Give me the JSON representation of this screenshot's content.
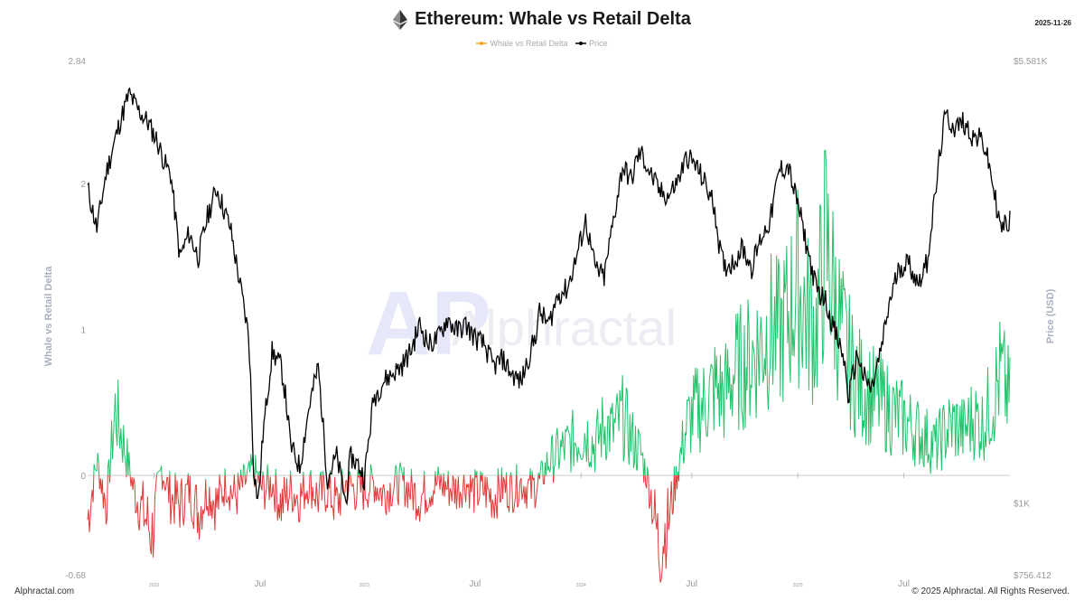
{
  "header": {
    "title": "Ethereum: Whale vs Retail Delta",
    "date": "2025-11-26",
    "icon": "ethereum-icon"
  },
  "legend": [
    {
      "name": "Whale vs Retail Delta",
      "color": "#f5a623"
    },
    {
      "name": "Price",
      "color": "#000000"
    }
  ],
  "watermark": "Alphractal",
  "footer": {
    "left": "Alphractal.com",
    "right": "© 2025 Alphractal. All Rights Reserved."
  },
  "colors": {
    "positive": "#22c36b",
    "negative": "#e03b3b",
    "price": "#000000",
    "axis_text": "#999999"
  },
  "chart_data": {
    "type": "line",
    "title": "Ethereum: Whale vs Retail Delta",
    "ylabel_left": "Whale vs Retail Delta",
    "ylabel_right": "Price (USD)",
    "ylim_left": [
      -0.68,
      2.84
    ],
    "ylim_right": [
      756.412,
      5581
    ],
    "right_scale": "log",
    "left_ticks": [
      "2.84",
      "2",
      "1",
      "0",
      "-0.68"
    ],
    "left_tick_values": [
      2.84,
      2,
      1,
      0,
      -0.68
    ],
    "right_ticks": [
      "$5.581K",
      "$1K",
      "$756.412"
    ],
    "right_tick_values": [
      5581,
      1000,
      756.412
    ],
    "x_ticks": [
      {
        "label": "2023",
        "pos": 0.072,
        "minor": true
      },
      {
        "label": "Jul",
        "pos": 0.187,
        "minor": false
      },
      {
        "label": "2023",
        "pos": 0.3,
        "minor": true
      },
      {
        "label": "Jul",
        "pos": 0.42,
        "minor": false
      },
      {
        "label": "2024",
        "pos": 0.535,
        "minor": true
      },
      {
        "label": "Jul",
        "pos": 0.655,
        "minor": false
      },
      {
        "label": "2025",
        "pos": 0.77,
        "minor": true
      },
      {
        "label": "Jul",
        "pos": 0.885,
        "minor": false
      }
    ],
    "price_series": {
      "name": "Price",
      "x": [
        0,
        0.01,
        0.02,
        0.035,
        0.045,
        0.055,
        0.065,
        0.075,
        0.085,
        0.09,
        0.1,
        0.11,
        0.12,
        0.13,
        0.14,
        0.155,
        0.165,
        0.175,
        0.18,
        0.185,
        0.19,
        0.2,
        0.21,
        0.215,
        0.22,
        0.23,
        0.24,
        0.25,
        0.26,
        0.27,
        0.28,
        0.285,
        0.295,
        0.3,
        0.31,
        0.32,
        0.33,
        0.34,
        0.35,
        0.36,
        0.37,
        0.38,
        0.39,
        0.4,
        0.41,
        0.42,
        0.43,
        0.44,
        0.45,
        0.46,
        0.47,
        0.475,
        0.485,
        0.49,
        0.5,
        0.51,
        0.52,
        0.53,
        0.54,
        0.55,
        0.56,
        0.57,
        0.58,
        0.59,
        0.595,
        0.6,
        0.61,
        0.62,
        0.63,
        0.64,
        0.65,
        0.66,
        0.67,
        0.68,
        0.685,
        0.69,
        0.7,
        0.71,
        0.72,
        0.73,
        0.74,
        0.75,
        0.76,
        0.765,
        0.77,
        0.78,
        0.79,
        0.8,
        0.81,
        0.82,
        0.825,
        0.83,
        0.835,
        0.84,
        0.85,
        0.86,
        0.87,
        0.88,
        0.89,
        0.9,
        0.91,
        0.92,
        0.925,
        0.93,
        0.94,
        0.95,
        0.96,
        0.97,
        0.975,
        0.98,
        0.99,
        1.0
      ],
      "values": [
        3400,
        2900,
        3600,
        4400,
        4900,
        4600,
        4400,
        4100,
        3700,
        3600,
        2600,
        2850,
        2600,
        3050,
        3400,
        2900,
        2350,
        1900,
        1150,
        1000,
        1300,
        1800,
        1700,
        1500,
        1250,
        1150,
        1450,
        1700,
        1100,
        1200,
        1000,
        1200,
        1150,
        1100,
        1500,
        1600,
        1650,
        1700,
        1800,
        2000,
        1850,
        1900,
        2050,
        1950,
        2000,
        1900,
        1850,
        1700,
        1750,
        1650,
        1600,
        1700,
        1900,
        2100,
        2000,
        2250,
        2300,
        2600,
        3000,
        2500,
        2400,
        3000,
        3700,
        3500,
        3800,
        3900,
        3600,
        3350,
        3300,
        3500,
        3850,
        3700,
        3450,
        3150,
        2700,
        2500,
        2550,
        2700,
        2500,
        2800,
        3000,
        3650,
        3700,
        3400,
        3200,
        2700,
        2300,
        2200,
        1950,
        1750,
        1500,
        1650,
        1800,
        1650,
        1550,
        1800,
        2200,
        2500,
        2550,
        2350,
        2550,
        3400,
        4000,
        4500,
        4300,
        4400,
        4150,
        4100,
        3850,
        3550,
        2900,
        3000
      ]
    },
    "delta_series": {
      "name": "Whale vs Retail Delta",
      "x": [
        0,
        0.01,
        0.02,
        0.03,
        0.04,
        0.05,
        0.06,
        0.07,
        0.08,
        0.09,
        0.1,
        0.11,
        0.12,
        0.13,
        0.14,
        0.15,
        0.16,
        0.17,
        0.18,
        0.19,
        0.2,
        0.21,
        0.22,
        0.23,
        0.24,
        0.25,
        0.26,
        0.27,
        0.28,
        0.29,
        0.3,
        0.31,
        0.32,
        0.33,
        0.34,
        0.35,
        0.36,
        0.37,
        0.38,
        0.39,
        0.4,
        0.41,
        0.42,
        0.43,
        0.44,
        0.45,
        0.46,
        0.47,
        0.48,
        0.49,
        0.5,
        0.51,
        0.52,
        0.53,
        0.54,
        0.55,
        0.56,
        0.57,
        0.58,
        0.59,
        0.6,
        0.61,
        0.62,
        0.63,
        0.64,
        0.65,
        0.66,
        0.67,
        0.68,
        0.69,
        0.7,
        0.71,
        0.72,
        0.73,
        0.74,
        0.75,
        0.76,
        0.77,
        0.78,
        0.79,
        0.8,
        0.81,
        0.82,
        0.83,
        0.84,
        0.85,
        0.86,
        0.87,
        0.88,
        0.89,
        0.9,
        0.91,
        0.92,
        0.93,
        0.94,
        0.95,
        0.96,
        0.97,
        0.98,
        0.99,
        1.0
      ],
      "values": [
        -0.3,
        0.1,
        -0.2,
        0.45,
        0.2,
        -0.1,
        -0.25,
        -0.4,
        0.05,
        -0.15,
        -0.2,
        -0.1,
        -0.25,
        -0.1,
        -0.2,
        -0.05,
        -0.15,
        -0.05,
        0.05,
        -0.1,
        -0.05,
        -0.2,
        -0.1,
        -0.15,
        -0.05,
        -0.15,
        -0.1,
        -0.2,
        -0.05,
        -0.1,
        -0.1,
        -0.05,
        -0.12,
        -0.08,
        -0.05,
        -0.1,
        -0.15,
        -0.1,
        -0.05,
        -0.08,
        -0.1,
        -0.05,
        -0.12,
        -0.1,
        -0.15,
        -0.08,
        -0.1,
        -0.05,
        -0.1,
        -0.05,
        0.1,
        0.15,
        0.2,
        0.25,
        0.3,
        0.2,
        0.35,
        0.3,
        0.4,
        0.25,
        0.15,
        -0.1,
        -0.5,
        -0.3,
        0.05,
        0.35,
        0.45,
        0.5,
        0.6,
        0.55,
        0.7,
        0.75,
        0.8,
        0.9,
        1.0,
        0.95,
        1.1,
        1.3,
        1.1,
        1.0,
        1.6,
        1.2,
        0.9,
        0.7,
        0.6,
        0.55,
        0.5,
        0.45,
        0.4,
        0.35,
        0.3,
        0.25,
        0.2,
        0.3,
        0.35,
        0.3,
        0.4,
        0.35,
        0.5,
        0.7,
        0.5
      ]
    },
    "zero_line": true,
    "grid": false,
    "legend_position": "top-center"
  }
}
